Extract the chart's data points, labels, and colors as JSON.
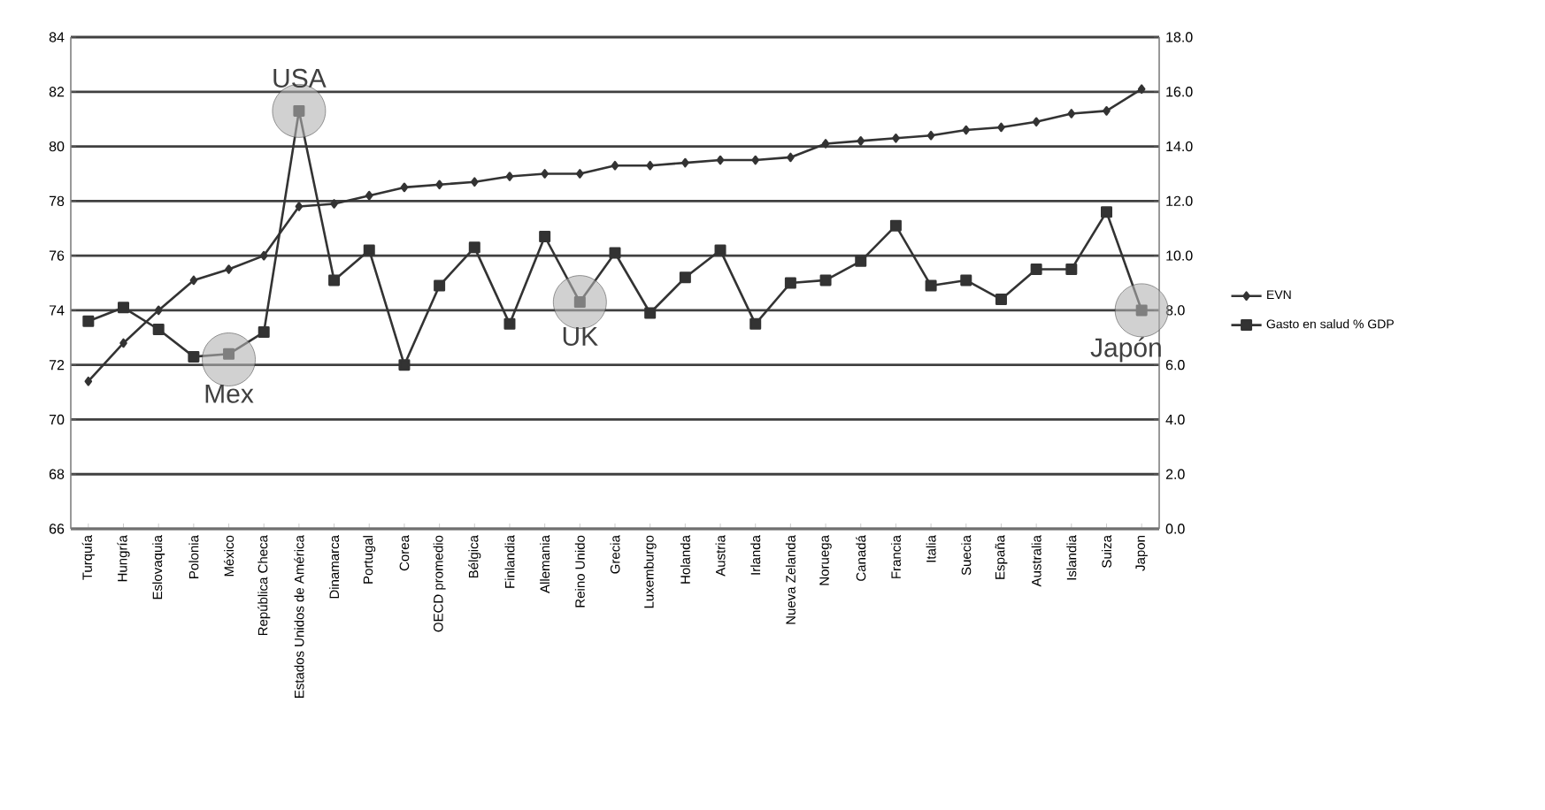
{
  "chart_data": {
    "type": "line",
    "categories": [
      "Turquía",
      "Hungría",
      "Eslovaquia",
      "Polonia",
      "México",
      "República Checa",
      "Estados Unidos de América",
      "Dinamarca",
      "Portugal",
      "Corea",
      "OECD promedio",
      "Bélgica",
      "Finlandia",
      "Allemania",
      "Reino Unido",
      "Grecia",
      "Luxemburgo",
      "Holanda",
      "Austria",
      "Irlanda",
      "Nueva Zelanda",
      "Noruega",
      "Canadá",
      "Francia",
      "Italia",
      "Suecia",
      "España",
      "Australia",
      "Islandia",
      "Suiza",
      "Japon"
    ],
    "series": [
      {
        "name": "EVN",
        "color": "#333333",
        "marker": "diamond",
        "values": [
          71.4,
          72.8,
          74.0,
          75.1,
          75.5,
          76.0,
          77.8,
          77.9,
          78.2,
          78.5,
          78.6,
          78.7,
          78.9,
          79.0,
          79.0,
          79.3,
          79.3,
          79.4,
          79.5,
          79.5,
          79.6,
          80.1,
          80.2,
          80.3,
          80.4,
          80.6,
          80.7,
          80.9,
          81.2,
          81.3,
          82.1
        ]
      },
      {
        "name": "Gasto en salud % GDP",
        "color": "#333333",
        "marker": "square",
        "axis": "y2",
        "values": [
          7.6,
          8.1,
          7.3,
          6.3,
          6.4,
          7.2,
          15.3,
          9.1,
          10.2,
          6.0,
          8.9,
          10.3,
          7.5,
          10.7,
          8.3,
          10.1,
          7.9,
          9.2,
          10.2,
          7.5,
          9.0,
          9.1,
          9.8,
          11.1,
          8.9,
          9.1,
          8.4,
          9.5,
          9.5,
          11.6,
          8.0
        ]
      }
    ],
    "ylim": [
      66,
      84
    ],
    "yticks": [
      66,
      68,
      70,
      72,
      74,
      76,
      78,
      80,
      82,
      84
    ],
    "y2lim": [
      0,
      18
    ],
    "y2ticks": [
      {
        "value": 0,
        "label": "0.0"
      },
      {
        "value": 2,
        "label": "2.0"
      },
      {
        "value": 4,
        "label": "4.0"
      },
      {
        "value": 6,
        "label": "6.0"
      },
      {
        "value": 8,
        "label": "8.0"
      },
      {
        "value": 10,
        "label": "10.0"
      },
      {
        "value": 12,
        "label": "12.0"
      },
      {
        "value": 14,
        "label": "14.0"
      },
      {
        "value": 16,
        "label": "16.0"
      },
      {
        "value": 18,
        "label": "18.0"
      }
    ],
    "grid": "y",
    "legend": "right",
    "line_style": "solid",
    "annotations": [
      {
        "text": "USA",
        "x": "Estados Unidos de América",
        "y": 81.3
      },
      {
        "text": "Mex",
        "x": "México",
        "y": 72.2
      },
      {
        "text": "UK",
        "x": "Reino Unido",
        "y": 74.3
      },
      {
        "text": "Japón",
        "x": "Japon",
        "y": 74.0
      }
    ]
  }
}
